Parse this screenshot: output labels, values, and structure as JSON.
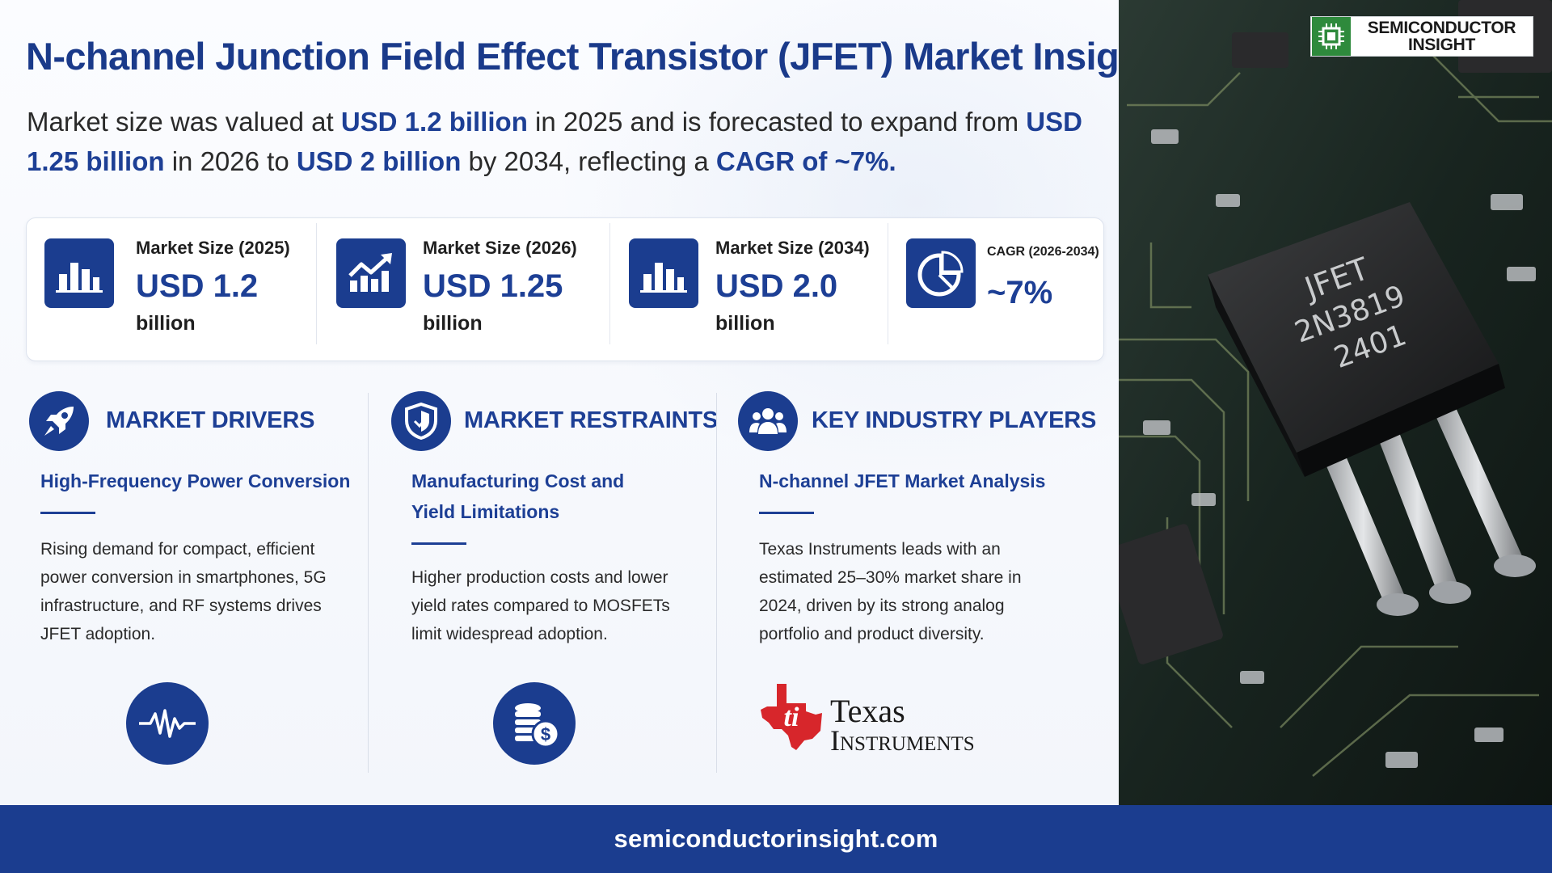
{
  "title": "N-channel Junction Field Effect Transistor (JFET) Market Insights",
  "summary": {
    "p1": "Market size was valued at ",
    "h1": "USD 1.2 billion",
    "p2": " in 2025 and is forecasted to expand from ",
    "h2": "USD 1.25 billion",
    "p3": " in 2026 to ",
    "h3": "USD 2 billion",
    "p4": " by 2034, reflecting a ",
    "h4": "CAGR of ~7%."
  },
  "stats": [
    {
      "label": "Market Size (2025)",
      "value": "USD 1.2",
      "unit": "billion",
      "icon": "bar-chart-icon"
    },
    {
      "label": "Market Size (2026)",
      "value": "USD 1.25",
      "unit": "billion",
      "icon": "trend-up-chart-icon"
    },
    {
      "label": "Market Size (2034)",
      "value": "USD 2.0",
      "unit": "billion",
      "icon": "bar-chart-icon"
    },
    {
      "label": "CAGR (2026-2034)",
      "value": "~7%",
      "unit": "",
      "icon": "pie-chart-icon"
    }
  ],
  "drivers": {
    "heading": "MARKET DRIVERS",
    "subtitle": "High-Frequency Power Conversion",
    "body": "Rising demand for compact, efficient power conversion in smartphones, 5G infrastructure, and RF systems drives JFET adoption.",
    "icon": "rocket-icon",
    "bottom_icon": "pulse-wave-icon"
  },
  "restraints": {
    "heading": "MARKET RESTRAINTS",
    "subtitle": "Manufacturing Cost and Yield Limitations",
    "body": "Higher production costs and lower yield rates compared to MOSFETs limit widespread adoption.",
    "icon": "shield-icon",
    "bottom_icon": "coins-dollar-icon"
  },
  "players": {
    "heading": "KEY INDUSTRY PLAYERS",
    "subtitle": "N-channel JFET Market Analysis",
    "body": "Texas Instruments leads with an estimated 25–30% market share in 2024, driven by its strong analog portfolio and product diversity.",
    "icon": "team-icon",
    "logo_line1": "Texas",
    "logo_line2": "Instruments"
  },
  "photo": {
    "chip_line1": "JFET",
    "chip_line2": "2N3819",
    "chip_line3": "2401"
  },
  "brand": {
    "line1": "SEMICONDUCTOR",
    "line2": "INSIGHT"
  },
  "footer": "semiconductorinsight.com",
  "colors": {
    "primary": "#1b3d8f",
    "accent_text": "#1d3f95",
    "footer_bg": "#1b3d8f",
    "ti_red": "#d7262b",
    "brand_green": "#2e8a3c"
  }
}
